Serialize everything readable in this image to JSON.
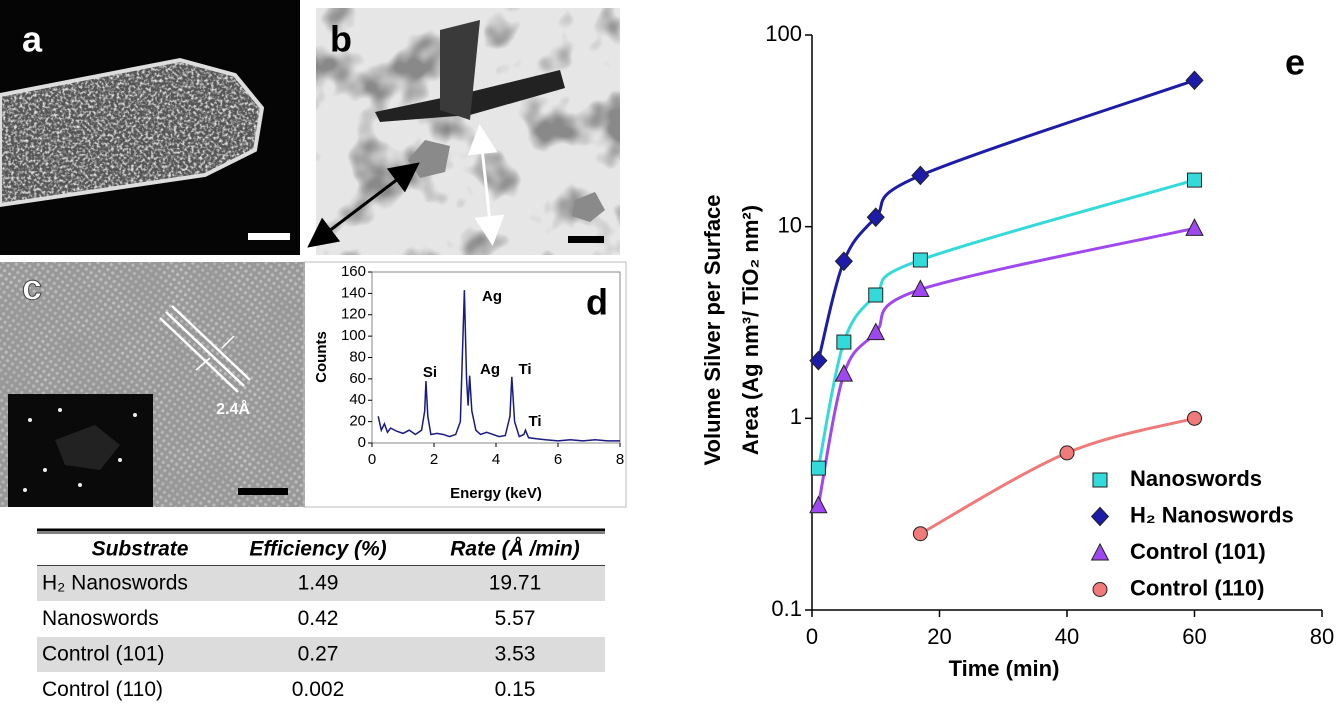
{
  "panels": [
    {
      "label": "a"
    },
    {
      "label": "b"
    },
    {
      "label": "c",
      "annotation": "2.4Å"
    }
  ],
  "table": {
    "header": [
      "Substrate",
      "Efficiency (%)",
      "Rate (Å /min)"
    ],
    "rows": [
      [
        "H₂ Nanoswords",
        "1.49",
        "19.71"
      ],
      [
        "Nanoswords",
        "0.42",
        "5.57"
      ],
      [
        "Control (101)",
        "0.27",
        "3.53"
      ],
      [
        "Control (110)",
        "0.002",
        "0.15"
      ]
    ]
  },
  "chart_data": [
    {
      "type": "line",
      "panel_label": "d",
      "xlabel": "Energy (keV)",
      "ylabel": "Counts",
      "annotations": [
        "Si",
        "Ag",
        "Ag",
        "Ti",
        "Ti"
      ],
      "xlim": [
        0,
        8
      ],
      "xticks": [
        0,
        2,
        4,
        6,
        8
      ],
      "ylim": [
        0,
        160
      ],
      "yticks": [
        0,
        20,
        40,
        60,
        80,
        100,
        120,
        140,
        160
      ],
      "series": [
        {
          "color": "#1a1a80",
          "x": [
            0.2,
            0.3,
            0.4,
            0.5,
            0.6,
            0.8,
            1.0,
            1.2,
            1.4,
            1.6,
            1.7,
            1.74,
            1.8,
            1.9,
            2.1,
            2.3,
            2.5,
            2.7,
            2.85,
            2.98,
            3.05,
            3.1,
            3.15,
            3.22,
            3.35,
            3.5,
            3.7,
            3.9,
            4.1,
            4.3,
            4.45,
            4.51,
            4.6,
            4.75,
            4.9,
            4.95,
            5.05,
            5.3,
            5.6,
            6.0,
            6.4,
            6.8,
            7.2,
            7.6,
            8.0
          ],
          "values": [
            25,
            12,
            18,
            10,
            14,
            11,
            9,
            12,
            8,
            12,
            30,
            58,
            25,
            8,
            9,
            8,
            6,
            8,
            20,
            143,
            60,
            35,
            63,
            30,
            12,
            8,
            10,
            8,
            6,
            7,
            25,
            62,
            20,
            6,
            8,
            12,
            5,
            4,
            3,
            2,
            3,
            2,
            3,
            2,
            2
          ]
        }
      ]
    },
    {
      "type": "scatter",
      "panel_label": "e",
      "xlabel": "Time (min)",
      "ylabel": [
        "Volume Silver per Surface",
        "Area (Ag nm³/ TiO₂ nm²)"
      ],
      "xlim": [
        0,
        80
      ],
      "xticks": [
        0,
        20,
        40,
        60,
        80
      ],
      "ylim": [
        0.1,
        100
      ],
      "yticks": [
        0.1,
        1,
        10,
        100
      ],
      "log_y": true,
      "legend": "lower right",
      "series": [
        {
          "name": "Nanoswords",
          "color": "#33dada",
          "marker": "square",
          "x": [
            1,
            5,
            10,
            17,
            60
          ],
          "values": [
            0.55,
            2.5,
            4.4,
            6.7,
            17.5
          ]
        },
        {
          "name": "H₂ Nanoswords",
          "color": "#1c1ca8",
          "marker": "diamond",
          "x": [
            1,
            5,
            10,
            17,
            60
          ],
          "values": [
            2.0,
            6.6,
            11.2,
            18.5,
            58
          ]
        },
        {
          "name": "Control (101)",
          "color": "#a048f0",
          "marker": "triangle",
          "x": [
            1,
            5,
            10,
            17,
            60
          ],
          "values": [
            0.35,
            1.7,
            2.8,
            4.7,
            9.8
          ]
        },
        {
          "name": "Control (110)",
          "color": "#f07a7a",
          "marker": "circle",
          "x": [
            17,
            40,
            60
          ],
          "values": [
            0.25,
            0.66,
            1.0
          ]
        }
      ]
    }
  ]
}
